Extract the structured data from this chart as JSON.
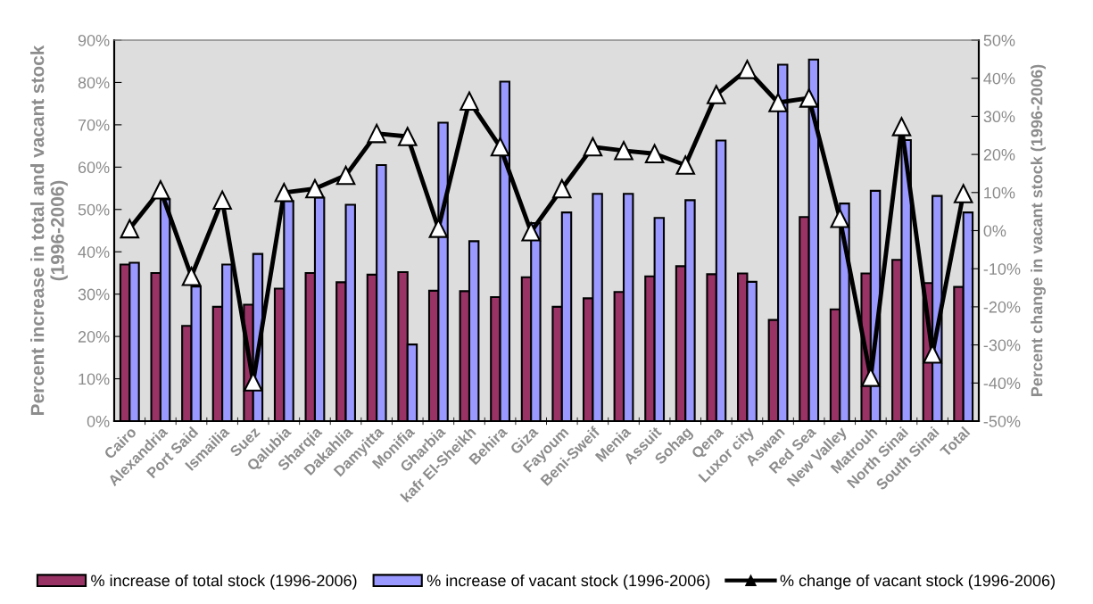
{
  "chart_data": {
    "type": "bar",
    "ylabel": "Percent increase in total and vacant stock\n(1996-2006)",
    "y2label": "Percent change in vacant stock (1996-2006)",
    "categories": [
      "Cairo",
      "Alexandria",
      "Port Said",
      "Ismailia",
      "Suez",
      "Qalubia",
      "Sharqia",
      "Dakahlia",
      "Damyitta",
      "Monifia",
      "Gharbia",
      "kafr El-Sheikh",
      "Behira",
      "Giza",
      "Fayoum",
      "Beni-Sweif",
      "Menia",
      "Assuit",
      "Sohag",
      "Qena",
      "Luxor city",
      "Aswan",
      "Red Sea",
      "New Valley",
      "Matrouh",
      "North Sinai",
      "South Sinai",
      "Total"
    ],
    "series": [
      {
        "name": "% increase of total stock (1996-2006)",
        "color": "#993366",
        "values": [
          37,
          35,
          22.5,
          27,
          27.5,
          31.3,
          35,
          32.8,
          34.6,
          35.2,
          30.8,
          30.7,
          29.3,
          34,
          27,
          29,
          30.5,
          34.2,
          36.6,
          34.7,
          34.9,
          23.9,
          48.2,
          26.4,
          34.9,
          38.1,
          32.6,
          31.7
        ]
      },
      {
        "name": "% increase of vacant stock (1996-2006)",
        "color": "#9999ff",
        "values": [
          37.4,
          52.4,
          31.8,
          37,
          39.5,
          52,
          52.8,
          51.1,
          60.5,
          18.1,
          70.5,
          42.5,
          80.2,
          46.8,
          49.3,
          53.7,
          53.7,
          48,
          52.2,
          66.3,
          32.9,
          84.2,
          85.4,
          51.4,
          54.4,
          66.4,
          53.2,
          49.3
        ]
      },
      {
        "name": "% change of vacant stock (1996-2006)",
        "type": "line",
        "axis": "y2",
        "color": "#000000",
        "marker": "triangle",
        "values": [
          0.5,
          10.7,
          -12,
          8,
          -39.7,
          10,
          11,
          14.5,
          25.5,
          24.7,
          0.6,
          34,
          22,
          -0.3,
          11,
          22,
          21,
          20.2,
          17.2,
          35.7,
          42.3,
          33.6,
          34.8,
          3.2,
          -38.5,
          27.3,
          -32.4,
          9.7
        ]
      }
    ],
    "ylim": [
      0,
      90
    ],
    "yticks": [
      {
        "value": 0,
        "label": "0%"
      },
      {
        "value": 10,
        "label": "10%"
      },
      {
        "value": 20,
        "label": "20%"
      },
      {
        "value": 30,
        "label": "30%"
      },
      {
        "value": 40,
        "label": "40%"
      },
      {
        "value": 50,
        "label": "50%"
      },
      {
        "value": 60,
        "label": "60%"
      },
      {
        "value": 70,
        "label": "70%"
      },
      {
        "value": 80,
        "label": "80%"
      },
      {
        "value": 90,
        "label": "90%"
      }
    ],
    "y2lim": [
      -50,
      50
    ],
    "y2ticks": [
      {
        "value": -50,
        "label": "-50%"
      },
      {
        "value": -40,
        "label": "-40%"
      },
      {
        "value": -30,
        "label": "-30%"
      },
      {
        "value": -20,
        "label": "-20%"
      },
      {
        "value": -10,
        "label": "-10%"
      },
      {
        "value": 0,
        "label": "0%"
      },
      {
        "value": 10,
        "label": "10%"
      },
      {
        "value": 20,
        "label": "20%"
      },
      {
        "value": 30,
        "label": "30%"
      },
      {
        "value": 40,
        "label": "40%"
      },
      {
        "value": 50,
        "label": "50%"
      }
    ],
    "grid": false,
    "legend": "bottom"
  }
}
